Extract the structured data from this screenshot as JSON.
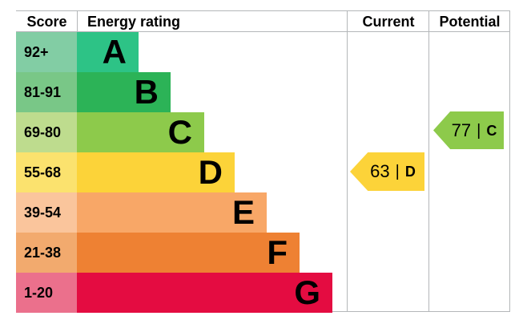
{
  "header": {
    "score": "Score",
    "energy_rating": "Energy rating",
    "current": "Current",
    "potential": "Potential"
  },
  "bands": [
    {
      "score": "92+",
      "letter": "A",
      "bar_color": "#2dc386",
      "score_color": "#82cda4"
    },
    {
      "score": "81-91",
      "letter": "B",
      "bar_color": "#2cb357",
      "score_color": "#79c787"
    },
    {
      "score": "69-80",
      "letter": "C",
      "bar_color": "#8dca4b",
      "score_color": "#bedc8e"
    },
    {
      "score": "55-68",
      "letter": "D",
      "bar_color": "#fcd339",
      "score_color": "#fbe26e"
    },
    {
      "score": "39-54",
      "letter": "E",
      "bar_color": "#f8a767",
      "score_color": "#fac59c"
    },
    {
      "score": "21-38",
      "letter": "F",
      "bar_color": "#ee8133",
      "score_color": "#f2aa6e"
    },
    {
      "score": "1-20",
      "letter": "G",
      "bar_color": "#e40c41",
      "score_color": "#eb708c"
    }
  ],
  "current_arrow": {
    "value": "63",
    "separator": "|",
    "band": "D",
    "color": "#fcd339"
  },
  "potential_arrow": {
    "value": "77",
    "separator": "|",
    "band": "C",
    "color": "#8dca4b"
  },
  "colors": {
    "border": "#b4b7b9",
    "text": "#000000",
    "background": "#ffffff"
  },
  "chart_data": {
    "type": "bar",
    "title": "Energy rating",
    "columns": [
      "Score",
      "Energy rating",
      "Current",
      "Potential"
    ],
    "categories": [
      "A",
      "B",
      "C",
      "D",
      "E",
      "F",
      "G"
    ],
    "score_ranges": [
      "92+",
      "81-91",
      "69-80",
      "55-68",
      "39-54",
      "21-38",
      "1-20"
    ],
    "bar_lengths_relative": [
      0.24,
      0.37,
      0.5,
      0.62,
      0.74,
      0.87,
      1.0
    ],
    "band_colors": [
      "#2dc386",
      "#2cb357",
      "#8dca4b",
      "#fcd339",
      "#f8a767",
      "#ee8133",
      "#e40c41"
    ],
    "current": {
      "score": 63,
      "band": "D"
    },
    "potential": {
      "score": 77,
      "band": "C"
    },
    "legend_position": "none",
    "grid": false
  }
}
